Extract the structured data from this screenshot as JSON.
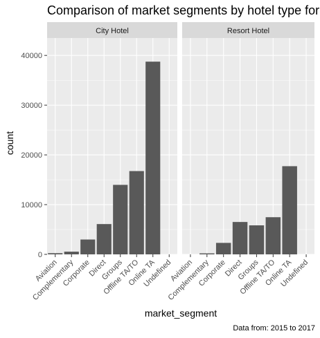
{
  "chart_data": {
    "type": "bar",
    "title": "Comparison of market segments by hotel type for",
    "xlabel": "market_segment",
    "ylabel": "count",
    "caption": "Data from: 2015 to 2017",
    "categories": [
      "Aviation",
      "Complementary",
      "Corporate",
      "Direct",
      "Groups",
      "Offline TA/TO",
      "Online TA",
      "Undefined"
    ],
    "ylim": [
      0,
      43500
    ],
    "yticks": [
      0,
      10000,
      20000,
      30000,
      40000
    ],
    "ytick_labels": [
      "0",
      "10000",
      "20000",
      "30000",
      "40000"
    ],
    "grid": true,
    "bar_color": "#595959",
    "panel_background": "#ebebeb",
    "strip_background": "#d9d9d9",
    "panels": [
      {
        "name": "City Hotel",
        "values": [
          237,
          542,
          2986,
          6093,
          13975,
          16747,
          38748,
          2
        ]
      },
      {
        "name": "Resort Hotel",
        "values": [
          0,
          201,
          2309,
          6513,
          5836,
          7472,
          17729,
          0
        ]
      }
    ]
  }
}
